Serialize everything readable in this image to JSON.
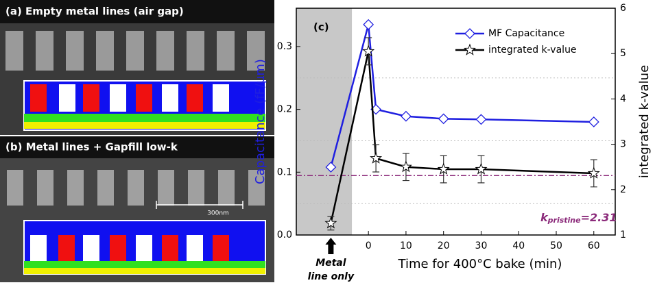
{
  "panels": {
    "a_title": "(a) Empty metal lines (air gap)",
    "b_title": "(b) Metal lines + Gapfill low-k",
    "scale_bar": "300nm"
  },
  "chart_data": {
    "type": "line",
    "panel_label": "(c)",
    "x_label": "Time for 400°C bake (min)",
    "y_label": "Capacitance (fF/µm)",
    "y2_label": "integrated k-value",
    "x": [
      -10,
      0,
      2,
      10,
      20,
      30,
      60
    ],
    "series": [
      {
        "name": "MF Capacitance",
        "color": "#1f1fe0",
        "marker": "diamond",
        "values": [
          0.108,
          0.335,
          0.2,
          0.189,
          0.185,
          0.184,
          0.18
        ]
      },
      {
        "name": "integrated k-value",
        "color": "#000000",
        "marker": "star",
        "axis": "y2",
        "values": [
          1.26,
          5.05,
          2.69,
          2.5,
          2.45,
          2.45,
          2.36
        ],
        "errors": [
          0.15,
          0.3,
          0.3,
          0.3,
          0.3,
          0.3,
          0.3
        ]
      }
    ],
    "xlim": [
      -19.2,
      65.7
    ],
    "xticks": [
      0,
      10,
      20,
      30,
      40,
      50,
      60
    ],
    "ylim": [
      0,
      0.361
    ],
    "yticks": [
      {
        "value": 0,
        "label": "0.0"
      },
      0.1,
      0.2,
      0.3
    ],
    "y2lim": [
      1,
      6
    ],
    "y2ticks": [
      1,
      2,
      3,
      4,
      5,
      6
    ],
    "minor_grid": [
      0.05,
      0.15,
      0.25
    ],
    "highlight_xrange": [
      -19.2,
      -4.4
    ],
    "reference_line": {
      "value": 2.31,
      "axis": "y2",
      "color": "#8b2a7a",
      "label_main": "k",
      "label_sub": "pristine",
      "label_suffix": "=2.31"
    },
    "annotation": {
      "x": -10,
      "lines": [
        "Metal",
        "line only"
      ]
    },
    "legend": "upper right"
  }
}
